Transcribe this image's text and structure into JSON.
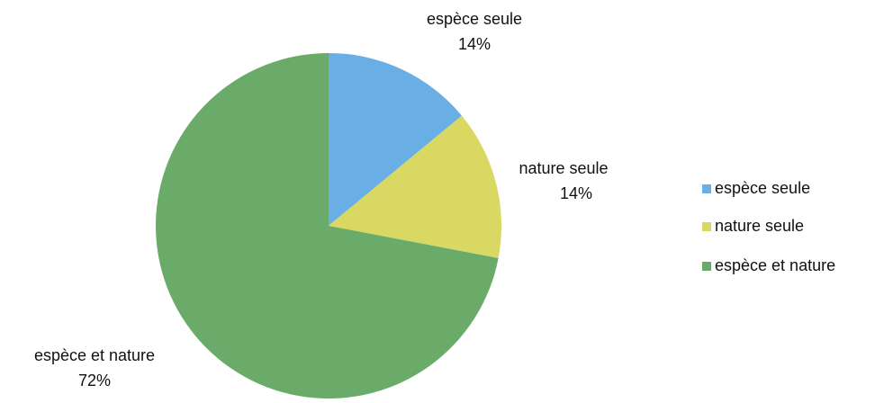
{
  "chart_data": {
    "type": "pie",
    "categories": [
      "espèce seule",
      "nature seule",
      "espèce et nature"
    ],
    "values": [
      14,
      14,
      72
    ],
    "value_labels": [
      "14%",
      "14%",
      "72%"
    ],
    "colors": [
      "#6aaee6",
      "#d9d862",
      "#6aab6a"
    ],
    "legend": "right"
  }
}
